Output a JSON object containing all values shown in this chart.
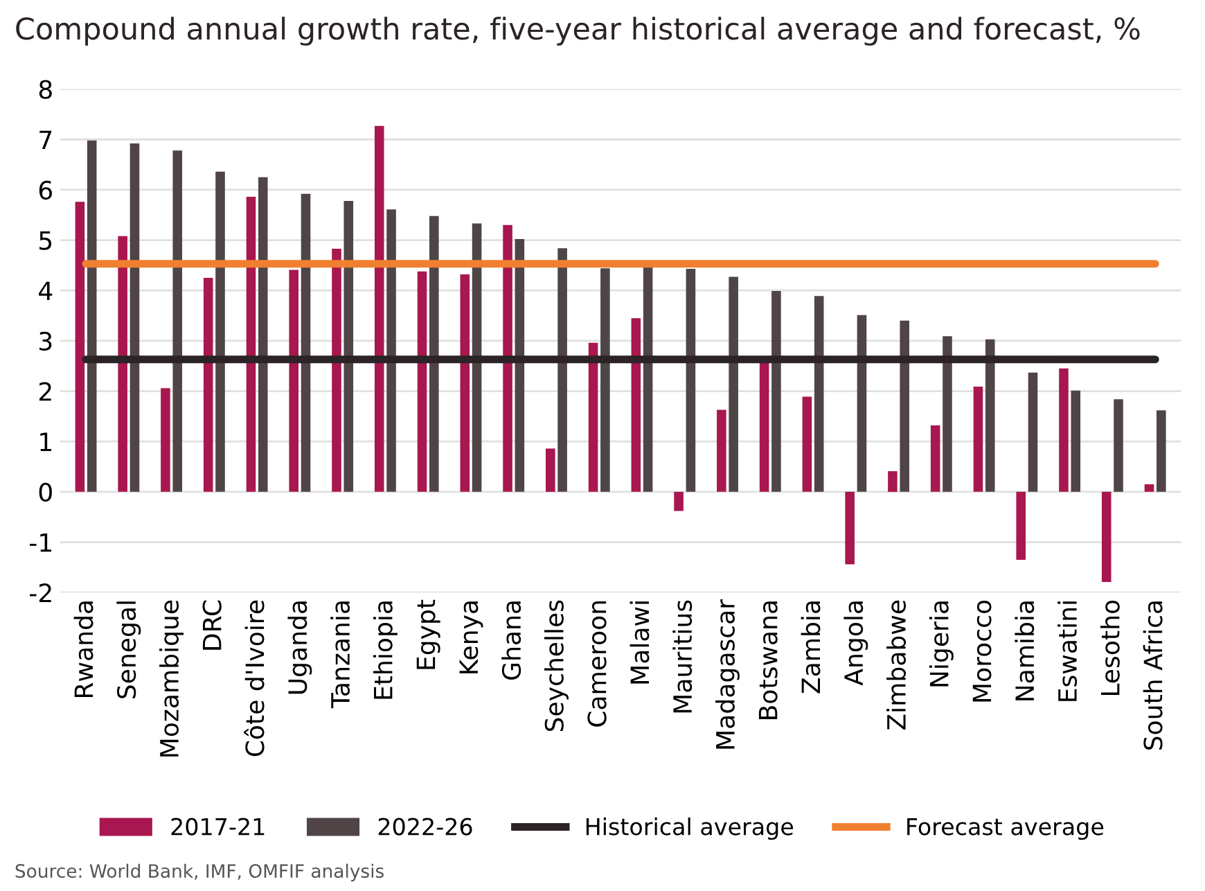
{
  "chart_data": {
    "type": "bar",
    "title": "Compound annual growth rate, five-year historical average and forecast, %",
    "categories": [
      "Rwanda",
      "Senegal",
      "Mozambique",
      "DRC",
      "Côte d'Ivoire",
      "Uganda",
      "Tanzania",
      "Ethiopia",
      "Egypt",
      "Kenya",
      "Ghana",
      "Seychelles",
      "Cameroon",
      "Malawi",
      "Mauritius",
      "Madagascar",
      "Botswana",
      "Zambia",
      "Angola",
      "Zimbabwe",
      "Nigeria",
      "Morocco",
      "Namibia",
      "Eswatini",
      "Lesotho",
      "South Africa"
    ],
    "series": [
      {
        "name": "2017-21",
        "color": "#a8174f",
        "values": [
          5.76,
          5.08,
          2.06,
          4.25,
          5.86,
          4.41,
          4.83,
          7.27,
          4.38,
          4.32,
          5.3,
          0.86,
          2.96,
          3.45,
          -0.38,
          1.63,
          2.58,
          1.89,
          -1.44,
          0.41,
          1.32,
          2.09,
          -1.35,
          2.45,
          -1.79,
          0.15
        ]
      },
      {
        "name": "2022-26",
        "color": "#4f4446",
        "values": [
          6.98,
          6.92,
          6.78,
          6.36,
          6.25,
          5.92,
          5.78,
          5.61,
          5.48,
          5.33,
          5.02,
          4.84,
          4.44,
          4.46,
          4.43,
          4.27,
          3.99,
          3.89,
          3.51,
          3.4,
          3.09,
          3.03,
          2.37,
          2.01,
          1.84,
          1.62
        ]
      },
      {
        "name": "Historical average",
        "type": "line",
        "color": "#2b2325",
        "values": [
          2.63,
          2.63,
          2.63,
          2.63,
          2.63,
          2.63,
          2.63,
          2.63,
          2.63,
          2.63,
          2.63,
          2.63,
          2.63,
          2.63,
          2.63,
          2.63,
          2.63,
          2.63,
          2.63,
          2.63,
          2.63,
          2.63,
          2.63,
          2.63,
          2.63,
          2.63
        ]
      },
      {
        "name": "Forecast average",
        "type": "line",
        "color": "#f08030",
        "values": [
          4.53,
          4.53,
          4.53,
          4.53,
          4.53,
          4.53,
          4.53,
          4.53,
          4.53,
          4.53,
          4.53,
          4.53,
          4.53,
          4.53,
          4.53,
          4.53,
          4.53,
          4.53,
          4.53,
          4.53,
          4.53,
          4.53,
          4.53,
          4.53,
          4.53,
          4.53
        ]
      }
    ],
    "ylim": [
      -2,
      8
    ],
    "yticks": [
      -2,
      -1,
      0,
      1,
      2,
      3,
      4,
      5,
      6,
      7,
      8
    ],
    "grid": "y",
    "legend": "bottom",
    "annotations": [
      "Source: World Bank, IMF, OMFIF analysis"
    ]
  }
}
